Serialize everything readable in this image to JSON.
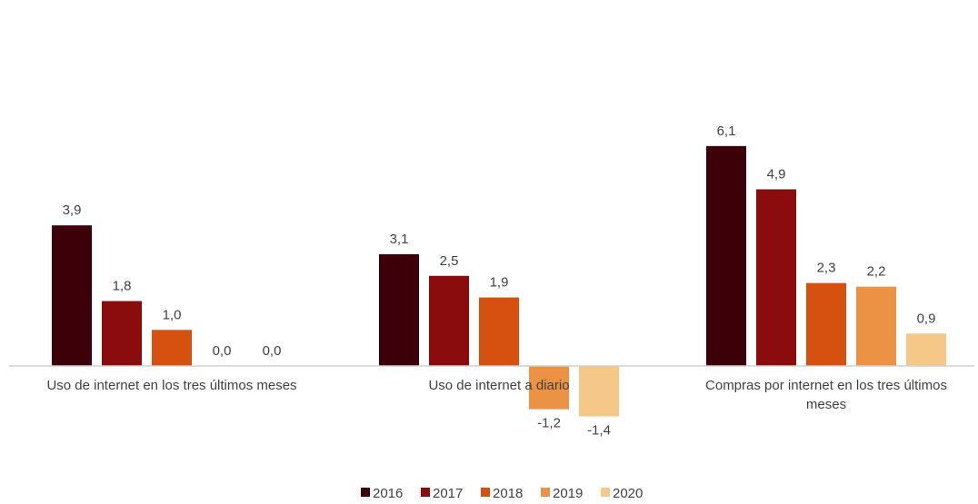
{
  "title_partial": "                                                              ",
  "chart_data": {
    "type": "bar",
    "categories": [
      "Uso de internet en los tres últimos meses",
      "Uso de internet a diario",
      "Compras por internet en los tres últimos meses"
    ],
    "category_label_lines": [
      [
        "Uso de internet en los tres últimos meses"
      ],
      [
        "Uso de internet a diario"
      ],
      [
        "Compras por internet en los tres últimos",
        "meses"
      ]
    ],
    "series": [
      {
        "name": "2016",
        "color": "#3d0008",
        "values": [
          3.9,
          3.1,
          6.1
        ],
        "labels": [
          "3,9",
          "3,1",
          "6,1"
        ]
      },
      {
        "name": "2017",
        "color": "#8b0c0c",
        "values": [
          1.8,
          2.5,
          4.9
        ],
        "labels": [
          "1,8",
          "2,5",
          "4,9"
        ]
      },
      {
        "name": "2018",
        "color": "#d6500f",
        "values": [
          1.0,
          1.9,
          2.3
        ],
        "labels": [
          "1,0",
          "1,9",
          "2,3"
        ]
      },
      {
        "name": "2019",
        "color": "#ec9245",
        "values": [
          0.0,
          -1.2,
          2.2
        ],
        "labels": [
          "0,0",
          "-1,2",
          "2,2"
        ]
      },
      {
        "name": "2020",
        "color": "#f5c887",
        "values": [
          0.0,
          -1.4,
          0.9
        ],
        "labels": [
          "0,0",
          "-1,4",
          "0,9"
        ]
      }
    ],
    "ylim": [
      -1.5,
      6.3
    ],
    "grid": false,
    "legend_position": "bottom-center",
    "axis_color": "#d0d0d0"
  }
}
